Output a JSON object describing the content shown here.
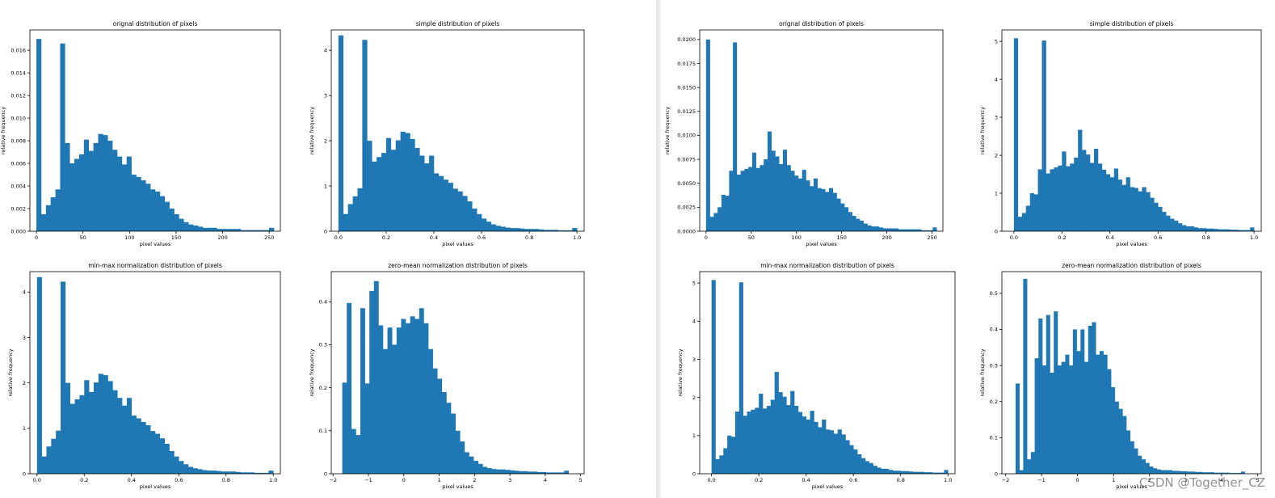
{
  "watermark": "CSDN @Together_CZ",
  "colors": {
    "bar": "#1f77b4",
    "axis": "#000000"
  },
  "chart_data": [
    {
      "type": "bar",
      "panel": "left",
      "grid_pos": "top-left",
      "title": "orignal distribution of pixels",
      "xlabel": "pixel values",
      "ylabel": "relative frequency",
      "xlim": [
        -7,
        262
      ],
      "ylim": [
        0,
        0.0178
      ],
      "xticks": [
        0,
        50,
        100,
        150,
        200,
        250
      ],
      "yticks": [
        0.0,
        0.002,
        0.004,
        0.006,
        0.008,
        0.01,
        0.012,
        0.014,
        0.016
      ],
      "ytick_labels": [
        "0.000",
        "0.002",
        "0.004",
        "0.006",
        "0.008",
        "0.010",
        "0.012",
        "0.014",
        "0.016"
      ],
      "bin_start": 0,
      "bin_width": 5.1,
      "values": [
        0.017,
        0.0015,
        0.0023,
        0.003,
        0.0037,
        0.0166,
        0.0078,
        0.006,
        0.0064,
        0.0068,
        0.0081,
        0.0071,
        0.0078,
        0.0086,
        0.0085,
        0.008,
        0.0072,
        0.0066,
        0.0059,
        0.0066,
        0.005,
        0.0048,
        0.0045,
        0.0042,
        0.0037,
        0.0035,
        0.0031,
        0.0026,
        0.002,
        0.0015,
        0.0011,
        0.0008,
        0.0006,
        0.0005,
        0.0004,
        0.0003,
        0.0003,
        0.0003,
        0.0002,
        0.0002,
        0.0002,
        0.0002,
        0.0002,
        0.0001,
        0.0001,
        0.0001,
        0.0001,
        0.0001,
        0.0001,
        0.0003
      ]
    },
    {
      "type": "bar",
      "panel": "left",
      "grid_pos": "top-right",
      "title": "simple distribution of pixels",
      "xlabel": "pixel values",
      "ylabel": "relative frequency",
      "xlim": [
        -0.03,
        1.03
      ],
      "ylim": [
        0,
        4.45
      ],
      "xticks": [
        0,
        0.2,
        0.4,
        0.6,
        0.8,
        1.0
      ],
      "xtick_labels": [
        "0.0",
        "0.2",
        "0.4",
        "0.6",
        "0.8",
        "1.0"
      ],
      "yticks": [
        0,
        1,
        2,
        3,
        4
      ],
      "bin_start": 0,
      "bin_width": 0.02,
      "values": [
        4.33,
        0.38,
        0.6,
        0.77,
        0.95,
        4.23,
        2.0,
        1.54,
        1.64,
        1.73,
        2.06,
        1.8,
        2.01,
        2.2,
        2.17,
        2.04,
        1.84,
        1.67,
        1.5,
        1.67,
        1.28,
        1.22,
        1.14,
        1.07,
        0.94,
        0.88,
        0.78,
        0.66,
        0.5,
        0.38,
        0.28,
        0.21,
        0.15,
        0.12,
        0.1,
        0.08,
        0.07,
        0.07,
        0.06,
        0.05,
        0.05,
        0.05,
        0.04,
        0.03,
        0.03,
        0.03,
        0.02,
        0.02,
        0.02,
        0.07
      ]
    },
    {
      "type": "bar",
      "panel": "left",
      "grid_pos": "bottom-left",
      "title": "min-max normalization distribution of pixels",
      "xlabel": "pixel values",
      "ylabel": "relative frequency",
      "xlim": [
        -0.03,
        1.03
      ],
      "ylim": [
        0,
        4.45
      ],
      "xticks": [
        0,
        0.2,
        0.4,
        0.6,
        0.8,
        1.0
      ],
      "xtick_labels": [
        "0.0",
        "0.2",
        "0.4",
        "0.6",
        "0.8",
        "1.0"
      ],
      "yticks": [
        0,
        1,
        2,
        3,
        4
      ],
      "bin_start": 0,
      "bin_width": 0.02,
      "values": [
        4.33,
        0.38,
        0.6,
        0.77,
        0.95,
        4.23,
        2.0,
        1.54,
        1.64,
        1.73,
        2.06,
        1.8,
        2.01,
        2.2,
        2.17,
        2.04,
        1.84,
        1.67,
        1.5,
        1.67,
        1.28,
        1.22,
        1.14,
        1.07,
        0.94,
        0.88,
        0.78,
        0.66,
        0.5,
        0.38,
        0.28,
        0.21,
        0.15,
        0.12,
        0.1,
        0.08,
        0.07,
        0.07,
        0.06,
        0.05,
        0.05,
        0.05,
        0.04,
        0.03,
        0.03,
        0.03,
        0.02,
        0.02,
        0.02,
        0.07
      ]
    },
    {
      "type": "bar",
      "panel": "left",
      "grid_pos": "bottom-right",
      "title": "zero-mean normalization distribution of pixels",
      "xlabel": "pixel values",
      "ylabel": "relative frequency",
      "xlim": [
        -2.05,
        5.1
      ],
      "ylim": [
        0,
        0.47
      ],
      "xticks": [
        -2,
        -1,
        0,
        1,
        2,
        3,
        4,
        5
      ],
      "yticks": [
        0.0,
        0.1,
        0.2,
        0.3,
        0.4
      ],
      "bin_start": -1.74,
      "bin_width": 0.128,
      "values": [
        0.212,
        0.397,
        0.104,
        0.09,
        0.385,
        0.21,
        0.425,
        0.448,
        0.345,
        0.29,
        0.34,
        0.3,
        0.34,
        0.36,
        0.35,
        0.366,
        0.36,
        0.385,
        0.35,
        0.29,
        0.245,
        0.221,
        0.19,
        0.165,
        0.14,
        0.1,
        0.075,
        0.05,
        0.04,
        0.03,
        0.023,
        0.016,
        0.013,
        0.011,
        0.01,
        0.01,
        0.009,
        0.008,
        0.007,
        0.006,
        0.006,
        0.005,
        0.005,
        0.004,
        0.004,
        0.003,
        0.003,
        0.003,
        0.003,
        0.007
      ]
    },
    {
      "type": "bar",
      "panel": "right",
      "grid_pos": "top-left",
      "title": "orignal distribution of pixels",
      "xlabel": "pixel values",
      "ylabel": "relative frequency",
      "xlim": [
        -7,
        262
      ],
      "ylim": [
        0,
        0.021
      ],
      "xticks": [
        0,
        50,
        100,
        150,
        200,
        250
      ],
      "yticks": [
        0.0,
        0.0025,
        0.005,
        0.0075,
        0.01,
        0.0125,
        0.015,
        0.0175,
        0.02
      ],
      "ytick_labels": [
        "0.0000",
        "0.0025",
        "0.0050",
        "0.0075",
        "0.0100",
        "0.0125",
        "0.0150",
        "0.0175",
        "0.0200"
      ],
      "bin_start": 0,
      "bin_width": 4.25,
      "values": [
        0.02,
        0.0015,
        0.0019,
        0.0025,
        0.0038,
        0.0037,
        0.0063,
        0.0197,
        0.0059,
        0.0063,
        0.0065,
        0.0067,
        0.0082,
        0.0066,
        0.0069,
        0.0075,
        0.0104,
        0.0084,
        0.0078,
        0.007,
        0.0085,
        0.0069,
        0.0063,
        0.0058,
        0.0055,
        0.0064,
        0.0053,
        0.0047,
        0.0055,
        0.0045,
        0.0044,
        0.0041,
        0.0045,
        0.004,
        0.0034,
        0.0029,
        0.0025,
        0.002,
        0.0016,
        0.0013,
        0.0011,
        0.0008,
        0.0006,
        0.0005,
        0.0005,
        0.0004,
        0.0003,
        0.0003,
        0.0003,
        0.0003,
        0.0002,
        0.0002,
        0.0002,
        0.0002,
        0.0002,
        0.0002,
        0.0001,
        0.0001,
        0.0001,
        0.0004
      ]
    },
    {
      "type": "bar",
      "panel": "right",
      "grid_pos": "top-right",
      "title": "simple distribution of pixels",
      "xlabel": "pixel values",
      "ylabel": "relative frequency",
      "xlim": [
        -0.05,
        1.03
      ],
      "ylim": [
        0,
        5.3
      ],
      "xticks": [
        0,
        0.2,
        0.4,
        0.6,
        0.8,
        1.0
      ],
      "xtick_labels": [
        "0.0",
        "0.2",
        "0.4",
        "0.6",
        "0.8",
        "1.0"
      ],
      "yticks": [
        0,
        1,
        2,
        3,
        4,
        5
      ],
      "bin_start": 0,
      "bin_width": 0.01667,
      "values": [
        5.08,
        0.38,
        0.48,
        0.67,
        1.0,
        0.97,
        1.63,
        5.02,
        1.52,
        1.63,
        1.68,
        1.73,
        2.1,
        1.71,
        1.78,
        1.94,
        2.67,
        2.14,
        2.02,
        1.8,
        2.17,
        1.78,
        1.62,
        1.5,
        1.42,
        1.65,
        1.36,
        1.22,
        1.42,
        1.16,
        1.14,
        1.05,
        1.16,
        1.03,
        0.88,
        0.75,
        0.64,
        0.51,
        0.41,
        0.33,
        0.28,
        0.21,
        0.16,
        0.13,
        0.13,
        0.1,
        0.08,
        0.08,
        0.07,
        0.07,
        0.06,
        0.05,
        0.05,
        0.05,
        0.04,
        0.04,
        0.03,
        0.03,
        0.03,
        0.1
      ]
    },
    {
      "type": "bar",
      "panel": "right",
      "grid_pos": "bottom-left",
      "title": "min-max normalization distribution of pixels",
      "xlabel": "pixel values",
      "ylabel": "relative frequency",
      "xlim": [
        -0.05,
        1.03
      ],
      "ylim": [
        0,
        5.3
      ],
      "xticks": [
        0,
        0.2,
        0.4,
        0.6,
        0.8,
        1.0
      ],
      "xtick_labels": [
        "0.0",
        "0.2",
        "0.4",
        "0.6",
        "0.8",
        "1.0"
      ],
      "yticks": [
        0,
        1,
        2,
        3,
        4,
        5
      ],
      "bin_start": 0,
      "bin_width": 0.01667,
      "values": [
        5.08,
        0.38,
        0.48,
        0.67,
        1.0,
        0.97,
        1.63,
        5.02,
        1.52,
        1.63,
        1.68,
        1.73,
        2.1,
        1.71,
        1.78,
        1.94,
        2.67,
        2.14,
        2.02,
        1.8,
        2.17,
        1.78,
        1.62,
        1.5,
        1.42,
        1.65,
        1.36,
        1.22,
        1.42,
        1.16,
        1.14,
        1.05,
        1.16,
        1.03,
        0.88,
        0.75,
        0.64,
        0.51,
        0.41,
        0.33,
        0.28,
        0.21,
        0.16,
        0.13,
        0.13,
        0.1,
        0.08,
        0.08,
        0.07,
        0.07,
        0.06,
        0.05,
        0.05,
        0.05,
        0.04,
        0.04,
        0.03,
        0.03,
        0.03,
        0.1
      ]
    },
    {
      "type": "bar",
      "panel": "right",
      "grid_pos": "bottom-right",
      "title": "zero-mean normalization distribution of pixels",
      "xlabel": "pixel values",
      "ylabel": "relative frequency",
      "xlim": [
        -2.1,
        5.1
      ],
      "ylim": [
        0,
        0.56
      ],
      "xticks": [
        -2,
        -1,
        0,
        1,
        2,
        3,
        4,
        5
      ],
      "yticks": [
        0.0,
        0.1,
        0.2,
        0.3,
        0.4,
        0.5
      ],
      "bin_start": -1.72,
      "bin_width": 0.106,
      "values": [
        0.25,
        0.01,
        0.54,
        0.04,
        0.06,
        0.32,
        0.43,
        0.3,
        0.44,
        0.28,
        0.45,
        0.3,
        0.31,
        0.33,
        0.3,
        0.4,
        0.34,
        0.4,
        0.31,
        0.41,
        0.42,
        0.33,
        0.34,
        0.33,
        0.29,
        0.24,
        0.2,
        0.18,
        0.16,
        0.12,
        0.09,
        0.07,
        0.05,
        0.04,
        0.03,
        0.02,
        0.015,
        0.012,
        0.01,
        0.01,
        0.01,
        0.008,
        0.008,
        0.007,
        0.007,
        0.006,
        0.006,
        0.005,
        0.005,
        0.004,
        0.004,
        0.004,
        0.003,
        0.003,
        0.003,
        0.003,
        0.002,
        0.002,
        0.002,
        0.006
      ]
    }
  ]
}
